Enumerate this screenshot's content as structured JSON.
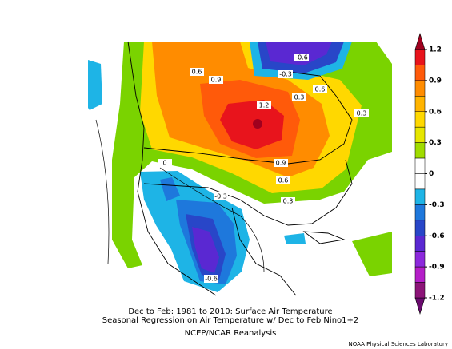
{
  "title_lines": [
    "Dec to Feb: 1981 to 2010: Surface Air Temperature",
    "Seasonal Regression on Air Temperature  w/ Dec to Feb Nino1+2",
    "NCEP/NCAR Reanalysis"
  ],
  "credit": "NOAA Physical Sciences Laboratory",
  "colorbar": {
    "labels": [
      "1.2",
      "0.9",
      "0.6",
      "0.3",
      "0",
      "-0.3",
      "-0.6",
      "-0.9",
      "-1.2"
    ],
    "top_color": "#a0001e",
    "bottom_color": "#6a0a6e",
    "colors": [
      "#e8141c",
      "#ff5a0a",
      "#ff8c00",
      "#ffb400",
      "#ffd800",
      "#e6e600",
      "#a0dc00",
      "#ffffff",
      "#ffffff",
      "#1eb4e6",
      "#1e78dc",
      "#2846c8",
      "#5a28d2",
      "#8c28dc",
      "#b41ec8",
      "#8c1478"
    ]
  },
  "map": {
    "contour_labels": [
      "-0.6",
      "0.6",
      "-0.3",
      "0.9",
      "0.6",
      "0.3",
      "1.2",
      "0.3",
      "0.9",
      "0",
      "0.6",
      "-0.3",
      "0.3",
      "-0.6"
    ]
  }
}
